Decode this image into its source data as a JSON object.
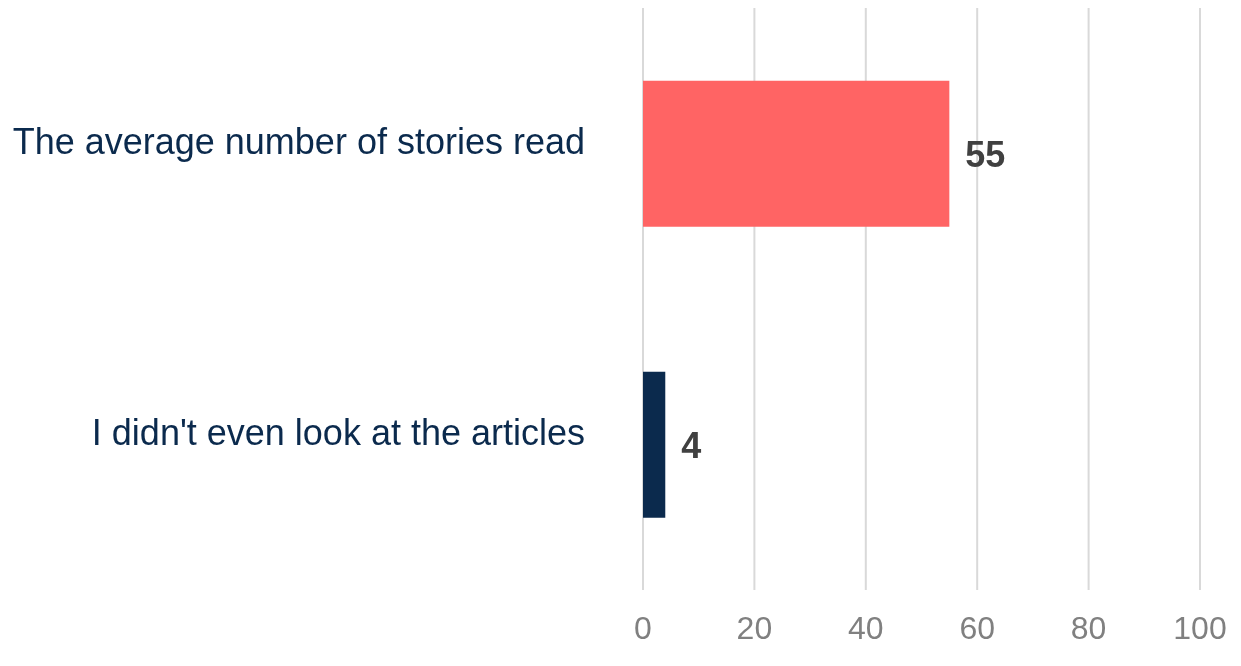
{
  "chart_data": {
    "type": "bar",
    "orientation": "horizontal",
    "categories": [
      "The average number of stories read",
      "I didn't even look at the articles"
    ],
    "values": [
      55,
      4
    ],
    "colors": [
      "#ff6464",
      "#0b2a4d"
    ],
    "xlim": [
      0,
      100
    ],
    "xticks": [
      0,
      20,
      40,
      60,
      80,
      100
    ],
    "grid": "x",
    "data_labels": true
  }
}
